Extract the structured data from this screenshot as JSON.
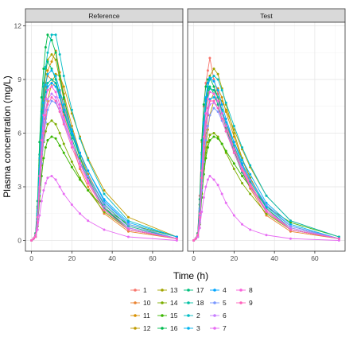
{
  "chart_data": {
    "type": "line",
    "xlabel": "Time (h)",
    "ylabel": "Plasma concentration (mg/L)",
    "panels": [
      {
        "title": "Reference"
      },
      {
        "title": "Test"
      }
    ],
    "xlim": [
      -3,
      75
    ],
    "ylim": [
      -0.6,
      12.2
    ],
    "x_ticks": [
      0,
      20,
      40,
      60
    ],
    "y_ticks": [
      0,
      3,
      6,
      9,
      12
    ],
    "x_tick_labels": [
      "0",
      "20",
      "40",
      "60"
    ],
    "y_tick_labels": [
      "0",
      "3",
      "6",
      "9",
      "12"
    ],
    "grid": true,
    "legend_position": "bottom",
    "time_points": [
      0,
      1,
      2,
      3,
      4,
      5,
      6,
      7,
      8,
      10,
      12,
      14,
      16,
      20,
      24,
      28,
      36,
      48,
      72
    ],
    "series": [
      {
        "name": "1",
        "color": "#F8766D",
        "reference": [
          0,
          0.1,
          0.3,
          1.5,
          4.0,
          6.0,
          7.2,
          8.0,
          8.4,
          8.6,
          8.8,
          8.3,
          7.5,
          6.0,
          4.6,
          3.5,
          1.8,
          0.7,
          0.1
        ],
        "test": [
          0,
          0.1,
          0.4,
          2.5,
          5.5,
          7.5,
          8.8,
          9.5,
          10.2,
          9.0,
          8.2,
          7.3,
          6.5,
          5.2,
          4.1,
          3.2,
          1.6,
          0.6,
          0.1
        ]
      },
      {
        "name": "10",
        "color": "#EA8331",
        "reference": [
          0,
          0.1,
          0.3,
          1.8,
          4.5,
          6.8,
          8.0,
          8.8,
          9.2,
          9.0,
          8.8,
          8.0,
          7.0,
          5.5,
          4.0,
          3.0,
          1.5,
          0.5,
          0.1
        ],
        "test": [
          0,
          0.1,
          0.3,
          2.0,
          4.8,
          6.5,
          7.5,
          8.2,
          8.5,
          8.4,
          8.0,
          7.2,
          6.3,
          5.0,
          3.8,
          2.9,
          1.4,
          0.5,
          0.1
        ]
      },
      {
        "name": "11",
        "color": "#D89000",
        "reference": [
          0,
          0.1,
          0.2,
          1.2,
          3.5,
          5.8,
          7.5,
          8.6,
          9.5,
          10.0,
          10.6,
          9.4,
          8.2,
          6.4,
          4.9,
          3.7,
          2.0,
          0.8,
          0.1
        ],
        "test": [
          0,
          0.1,
          0.2,
          1.0,
          3.0,
          4.8,
          6.0,
          7.0,
          7.8,
          8.2,
          8.5,
          8.0,
          7.2,
          5.8,
          4.5,
          3.5,
          1.9,
          0.8,
          0.1
        ]
      },
      {
        "name": "12",
        "color": "#C09B00",
        "reference": [
          0,
          0.1,
          0.2,
          0.8,
          2.5,
          4.2,
          5.6,
          6.8,
          7.8,
          8.8,
          9.3,
          9.2,
          8.6,
          7.1,
          5.8,
          4.6,
          2.8,
          1.3,
          0.2
        ],
        "test": [
          0,
          0.1,
          0.2,
          0.9,
          2.6,
          4.0,
          5.2,
          6.2,
          7.0,
          7.8,
          8.0,
          7.8,
          7.3,
          6.2,
          5.1,
          4.1,
          2.5,
          1.1,
          0.2
        ]
      },
      {
        "name": "13",
        "color": "#A3A500",
        "reference": [
          0,
          0.1,
          0.3,
          1.6,
          4.2,
          6.5,
          8.2,
          9.3,
          10.1,
          10.4,
          10.1,
          9.0,
          7.9,
          6.1,
          4.6,
          3.5,
          1.8,
          0.6,
          0.1
        ],
        "test": [
          0,
          0.1,
          0.3,
          1.5,
          3.8,
          5.8,
          7.4,
          8.5,
          9.2,
          9.6,
          9.3,
          8.5,
          7.6,
          6.0,
          4.6,
          3.5,
          1.8,
          0.6,
          0.1
        ]
      },
      {
        "name": "14",
        "color": "#7CAE00",
        "reference": [
          0,
          0.1,
          0.2,
          1.0,
          2.8,
          4.5,
          5.5,
          6.1,
          6.5,
          6.7,
          6.5,
          6.0,
          5.4,
          4.4,
          3.5,
          2.8,
          1.6,
          0.6,
          0.1
        ],
        "test": [
          0,
          0.1,
          0.2,
          1.0,
          2.6,
          4.0,
          4.9,
          5.5,
          5.9,
          6.0,
          5.8,
          5.4,
          4.9,
          4.0,
          3.2,
          2.6,
          1.5,
          0.6,
          0.1
        ]
      },
      {
        "name": "15",
        "color": "#39B600",
        "reference": [
          0,
          0.1,
          0.2,
          0.8,
          2.2,
          3.6,
          4.6,
          5.2,
          5.6,
          5.8,
          5.7,
          5.3,
          4.9,
          4.1,
          3.4,
          2.8,
          1.8,
          0.9,
          0.2
        ],
        "test": [
          0,
          0.1,
          0.2,
          0.9,
          2.4,
          3.7,
          4.6,
          5.2,
          5.6,
          5.8,
          5.7,
          5.4,
          5.0,
          4.3,
          3.6,
          3.0,
          1.9,
          1.0,
          0.2
        ]
      },
      {
        "name": "16",
        "color": "#00BB4E",
        "reference": [
          0,
          0.1,
          0.4,
          2.2,
          5.5,
          8.0,
          9.6,
          10.8,
          11.5,
          11.2,
          10.5,
          9.2,
          8.0,
          6.1,
          4.7,
          3.5,
          1.8,
          0.6,
          0.1
        ],
        "test": [
          0,
          0.1,
          0.4,
          2.3,
          5.6,
          7.6,
          8.6,
          9.0,
          9.1,
          8.6,
          8.0,
          7.1,
          6.3,
          5.0,
          3.9,
          3.0,
          1.6,
          0.6,
          0.1
        ]
      },
      {
        "name": "17",
        "color": "#00BF7D",
        "reference": [
          0,
          0.1,
          0.3,
          1.9,
          4.8,
          7.2,
          8.8,
          9.6,
          10.0,
          9.6,
          9.0,
          8.1,
          7.2,
          5.7,
          4.4,
          3.4,
          1.8,
          0.7,
          0.1
        ],
        "test": [
          0,
          0.1,
          0.3,
          2.0,
          4.9,
          6.8,
          7.9,
          8.4,
          8.6,
          8.2,
          7.6,
          6.8,
          6.1,
          4.9,
          3.8,
          3.0,
          1.6,
          0.6,
          0.1
        ]
      },
      {
        "name": "18",
        "color": "#00C1A3",
        "reference": [
          0,
          0.1,
          0.3,
          1.4,
          3.8,
          6.0,
          7.4,
          8.3,
          8.8,
          9.0,
          8.8,
          8.1,
          7.3,
          5.9,
          4.7,
          3.6,
          2.0,
          0.8,
          0.1
        ],
        "test": [
          0,
          0.1,
          0.3,
          1.6,
          4.2,
          6.2,
          7.4,
          8.1,
          8.5,
          8.4,
          8.0,
          7.3,
          6.6,
          5.3,
          4.2,
          3.3,
          1.8,
          0.7,
          0.1
        ]
      },
      {
        "name": "2",
        "color": "#00BDC4",
        "reference": [
          0,
          0.1,
          0.3,
          1.7,
          4.6,
          7.0,
          8.6,
          9.7,
          10.5,
          11.5,
          11.5,
          10.4,
          9.2,
          7.3,
          5.7,
          4.5,
          2.6,
          1.1,
          0.2
        ],
        "test": [
          0,
          0.1,
          0.3,
          1.8,
          4.5,
          6.5,
          7.8,
          8.6,
          9.0,
          9.2,
          9.0,
          8.4,
          7.7,
          6.4,
          5.2,
          4.2,
          2.5,
          1.1,
          0.2
        ]
      },
      {
        "name": "3",
        "color": "#00B4EF",
        "reference": [
          0,
          0.1,
          0.3,
          1.5,
          4.0,
          6.2,
          7.7,
          8.7,
          9.3,
          9.5,
          9.2,
          8.4,
          7.6,
          6.2,
          4.9,
          3.9,
          2.2,
          0.9,
          0.1
        ],
        "test": [
          0,
          0.1,
          0.3,
          1.4,
          3.6,
          5.4,
          6.6,
          7.4,
          7.9,
          8.0,
          7.8,
          7.2,
          6.6,
          5.5,
          4.5,
          3.7,
          2.1,
          0.9,
          0.1
        ]
      },
      {
        "name": "4",
        "color": "#00A5FF",
        "reference": [
          0,
          0.1,
          0.2,
          1.1,
          3.2,
          5.2,
          6.8,
          7.9,
          8.6,
          8.8,
          8.6,
          8.0,
          7.3,
          6.0,
          4.9,
          3.9,
          2.3,
          1.0,
          0.2
        ],
        "test": [
          0,
          0.1,
          0.3,
          1.7,
          4.4,
          6.6,
          8.0,
          8.8,
          9.1,
          8.9,
          8.4,
          7.6,
          6.8,
          5.5,
          4.3,
          3.4,
          1.9,
          0.8,
          0.1
        ]
      },
      {
        "name": "5",
        "color": "#7997FF",
        "reference": [
          0,
          0.1,
          0.2,
          0.9,
          2.6,
          4.3,
          5.6,
          6.6,
          7.3,
          7.8,
          7.7,
          7.2,
          6.6,
          5.4,
          4.4,
          3.6,
          2.1,
          0.9,
          0.1
        ],
        "test": [
          0,
          0.1,
          0.2,
          1.0,
          2.8,
          4.4,
          5.6,
          6.4,
          7.0,
          7.4,
          7.2,
          6.7,
          6.1,
          5.1,
          4.1,
          3.4,
          2.0,
          0.8,
          0.1
        ]
      },
      {
        "name": "6",
        "color": "#C77CFF",
        "reference": [
          0,
          0.1,
          0.2,
          1.1,
          3.0,
          4.9,
          6.3,
          7.3,
          7.9,
          8.2,
          8.0,
          7.4,
          6.7,
          5.4,
          4.3,
          3.4,
          1.9,
          0.7,
          0.1
        ],
        "test": [
          0,
          0.1,
          0.2,
          1.2,
          3.2,
          5.0,
          6.3,
          7.1,
          7.6,
          7.7,
          7.4,
          6.8,
          6.1,
          4.9,
          3.9,
          3.1,
          1.7,
          0.7,
          0.1
        ]
      },
      {
        "name": "7",
        "color": "#E76BF3",
        "reference": [
          0,
          0.1,
          0.2,
          0.6,
          1.4,
          2.2,
          2.8,
          3.2,
          3.5,
          3.6,
          3.4,
          3.0,
          2.6,
          2.0,
          1.5,
          1.1,
          0.6,
          0.2,
          0.0
        ],
        "test": [
          0,
          0.1,
          0.2,
          0.7,
          1.6,
          2.4,
          3.0,
          3.4,
          3.6,
          3.4,
          3.1,
          2.6,
          2.1,
          1.4,
          0.9,
          0.6,
          0.3,
          0.1,
          0.0
        ]
      },
      {
        "name": "8",
        "color": "#FA62DB",
        "reference": [
          0,
          0.1,
          0.3,
          1.3,
          3.6,
          5.6,
          7.0,
          7.9,
          8.4,
          8.6,
          8.3,
          7.6,
          6.9,
          5.5,
          4.3,
          3.3,
          1.7,
          0.6,
          0.1
        ],
        "test": [
          0,
          0.1,
          0.3,
          1.5,
          3.9,
          5.8,
          7.1,
          7.9,
          8.3,
          8.2,
          7.8,
          7.1,
          6.4,
          5.1,
          4.0,
          3.1,
          1.7,
          0.6,
          0.1
        ]
      },
      {
        "name": "9",
        "color": "#FF62BC",
        "reference": [
          0,
          0.1,
          0.2,
          1.0,
          2.9,
          4.7,
          6.0,
          7.0,
          7.6,
          8.0,
          7.8,
          7.2,
          6.5,
          5.2,
          4.1,
          3.2,
          1.7,
          0.6,
          0.1
        ],
        "test": [
          0,
          0.1,
          0.3,
          1.3,
          3.5,
          5.3,
          6.6,
          7.4,
          7.8,
          7.8,
          7.4,
          6.8,
          6.1,
          4.9,
          3.9,
          3.0,
          1.6,
          0.6,
          0.1
        ]
      }
    ],
    "legend_order": [
      "1",
      "10",
      "11",
      "12",
      "13",
      "14",
      "15",
      "16",
      "17",
      "18",
      "2",
      "3",
      "4",
      "5",
      "6",
      "7",
      "8",
      "9"
    ]
  }
}
